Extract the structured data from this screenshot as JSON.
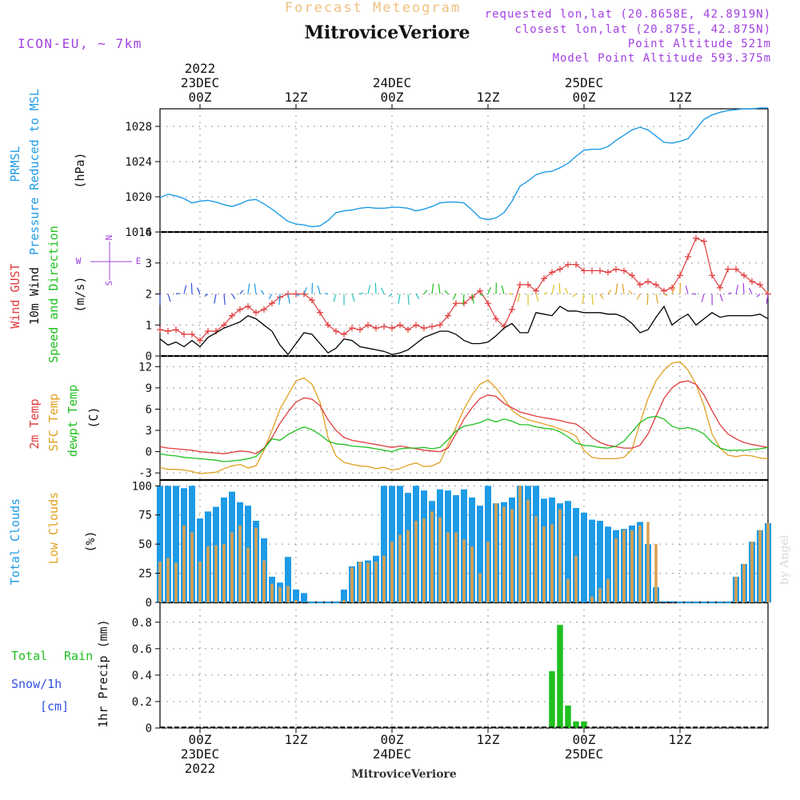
{
  "header": {
    "product": "Forecast Meteogram",
    "location": "MitroviceVeriore",
    "model": "ICON-EU, ~ 7km",
    "requested": "requested lon,lat (20.8658E, 42.8919N)",
    "closest": "closest lon,lat (20.875E, 42.875N)",
    "point_alt": "Point Altitude 521m",
    "model_alt": "Model Point Altitude 593.375m",
    "watermark": "by Angel"
  },
  "time_axis": {
    "top": [
      {
        "h": 0,
        "lines": [
          "2022",
          "23DEC",
          "00Z"
        ]
      },
      {
        "h": 12,
        "lines": [
          "12Z"
        ]
      },
      {
        "h": 24,
        "lines": [
          "24DEC",
          "00Z"
        ]
      },
      {
        "h": 36,
        "lines": [
          "12Z"
        ]
      },
      {
        "h": 48,
        "lines": [
          "25DEC",
          "00Z"
        ]
      },
      {
        "h": 60,
        "lines": [
          "12Z"
        ]
      }
    ],
    "bottom": [
      {
        "h": 0,
        "lines": [
          "00Z",
          "23DEC",
          "2022"
        ]
      },
      {
        "h": 12,
        "lines": [
          "12Z"
        ]
      },
      {
        "h": 24,
        "lines": [
          "00Z",
          "24DEC"
        ]
      },
      {
        "h": 36,
        "lines": [
          "12Z"
        ]
      },
      {
        "h": 48,
        "lines": [
          "00Z",
          "25DEC"
        ]
      },
      {
        "h": 60,
        "lines": [
          "12Z"
        ]
      }
    ],
    "footer": "MitroviceVeriore",
    "range_hours": [
      -5,
      71
    ]
  },
  "compass": {
    "n": "N",
    "s": "S",
    "w": "W",
    "e": "E"
  },
  "labels": {
    "p1": [
      "PRMSL",
      "Pressure Reduced to MSL",
      "(hPa)"
    ],
    "p2_gust": "Wind GUST",
    "p2_wind": "10m Wind",
    "p2_dir": "Speed and Direction",
    "p2_unit": "(m/s)",
    "p3_t2m": "2m Temp",
    "p3_sfc": "SFC Temp",
    "p3_dew": "dewpt Temp",
    "p3_unit": "(C)",
    "p4_total": "Total Clouds",
    "p4_low": "Low Clouds",
    "p4_unit": "(%)",
    "p5_total": "Total",
    "p5_rain": "Rain",
    "p5_snow": "Snow/1h",
    "p5_cm": "[cm]",
    "p5_unit": "1hr Precip (mm)"
  },
  "colors": {
    "pressure": "#1e9be6",
    "gust": "#e03c3c",
    "wind": "#000000",
    "t2m": "#e03c3c",
    "sfc": "#e0a020",
    "dew": "#20c020",
    "total_cloud": "#1e9be6",
    "low_cloud": "#d8a050",
    "rain": "#20c020",
    "snow": "#3050e0",
    "title_header": "#f0c080",
    "info": "#a040e0"
  },
  "chart_data": [
    {
      "type": "line",
      "name": "pressure",
      "ylim": [
        1016,
        1030
      ],
      "yticks": [
        "1016",
        "1020",
        "1024",
        "1028"
      ],
      "x": [
        -5,
        -4,
        -3,
        -2,
        -1,
        0,
        1,
        2,
        3,
        4,
        5,
        6,
        7,
        8,
        9,
        10,
        11,
        12,
        13,
        14,
        15,
        16,
        17,
        18,
        19,
        20,
        21,
        22,
        23,
        24,
        25,
        26,
        27,
        28,
        29,
        30,
        31,
        32,
        33,
        34,
        35,
        36,
        37,
        38,
        39,
        40,
        41,
        42,
        43,
        44,
        45,
        46,
        47,
        48,
        49,
        50,
        51,
        52,
        53,
        54,
        55,
        56,
        57,
        58,
        59,
        60,
        61,
        62,
        63,
        64,
        65,
        66,
        67,
        68,
        69,
        70,
        71
      ],
      "y": [
        1019.9,
        1020.3,
        1020.1,
        1019.8,
        1019.3,
        1019.5,
        1019.6,
        1019.4,
        1019.1,
        1018.9,
        1019.2,
        1019.6,
        1019.7,
        1019.2,
        1018.6,
        1017.9,
        1017.2,
        1016.9,
        1016.8,
        1016.6,
        1016.7,
        1017.3,
        1018.2,
        1018.4,
        1018.5,
        1018.7,
        1018.8,
        1018.7,
        1018.7,
        1018.8,
        1018.8,
        1018.7,
        1018.4,
        1018.6,
        1018.9,
        1019.3,
        1019.4,
        1019.4,
        1019.3,
        1018.5,
        1017.6,
        1017.4,
        1017.6,
        1018.2,
        1019.5,
        1021.2,
        1021.8,
        1022.5,
        1022.8,
        1022.9,
        1023.3,
        1023.8,
        1024.6,
        1025.3,
        1025.4,
        1025.4,
        1025.7,
        1026.4,
        1027.0,
        1027.6,
        1027.9,
        1027.6,
        1026.9,
        1026.2,
        1026.1,
        1026.3,
        1026.6,
        1027.7,
        1028.8,
        1029.3,
        1029.6,
        1029.8,
        1029.9,
        1030.0,
        1030.0,
        1030.1,
        1030.1
      ]
    },
    {
      "type": "line",
      "name": "wind",
      "ylim": [
        0,
        4
      ],
      "yticks": [
        "0",
        "1",
        "2",
        "3",
        "4"
      ],
      "x": [
        -5,
        -4,
        -3,
        -2,
        -1,
        0,
        1,
        2,
        3,
        4,
        5,
        6,
        7,
        8,
        9,
        10,
        11,
        12,
        13,
        14,
        15,
        16,
        17,
        18,
        19,
        20,
        21,
        22,
        23,
        24,
        25,
        26,
        27,
        28,
        29,
        30,
        31,
        32,
        33,
        34,
        35,
        36,
        37,
        38,
        39,
        40,
        41,
        42,
        43,
        44,
        45,
        46,
        47,
        48,
        49,
        50,
        51,
        52,
        53,
        54,
        55,
        56,
        57,
        58,
        59,
        60,
        61,
        62,
        63,
        64,
        65,
        66,
        67,
        68,
        69,
        70,
        71
      ],
      "gust": [
        0.85,
        0.8,
        0.85,
        0.7,
        0.7,
        0.5,
        0.8,
        0.8,
        1.0,
        1.3,
        1.5,
        1.6,
        1.4,
        1.5,
        1.7,
        1.9,
        2.0,
        2.0,
        2.0,
        1.8,
        1.4,
        1.0,
        0.8,
        0.7,
        0.9,
        0.85,
        1.0,
        0.9,
        0.95,
        0.9,
        1.0,
        0.85,
        1.0,
        0.9,
        0.95,
        1.0,
        1.3,
        1.7,
        1.7,
        1.9,
        2.1,
        1.7,
        1.2,
        0.95,
        1.5,
        2.3,
        2.3,
        2.1,
        2.5,
        2.7,
        2.8,
        2.95,
        2.95,
        2.75,
        2.75,
        2.75,
        2.7,
        2.8,
        2.75,
        2.6,
        2.3,
        2.4,
        2.3,
        2.1,
        2.2,
        2.6,
        3.2,
        3.8,
        3.7,
        2.6,
        2.2,
        2.8,
        2.8,
        2.6,
        2.4,
        2.3,
        2.0
      ],
      "speed": [
        0.55,
        0.35,
        0.45,
        0.3,
        0.5,
        0.3,
        0.6,
        0.75,
        0.9,
        1.0,
        1.1,
        1.3,
        1.2,
        1.0,
        0.8,
        0.35,
        0.05,
        0.4,
        0.75,
        0.7,
        0.4,
        0.1,
        0.25,
        0.55,
        0.5,
        0.3,
        0.25,
        0.2,
        0.15,
        0.05,
        0.1,
        0.2,
        0.4,
        0.6,
        0.7,
        0.8,
        0.8,
        0.7,
        0.5,
        0.4,
        0.4,
        0.45,
        0.65,
        0.9,
        1.05,
        0.75,
        0.75,
        1.4,
        1.35,
        1.3,
        1.6,
        1.45,
        1.45,
        1.4,
        1.4,
        1.4,
        1.35,
        1.35,
        1.25,
        1.05,
        0.75,
        0.85,
        1.25,
        1.6,
        1.0,
        1.2,
        1.35,
        1.0,
        1.2,
        1.4,
        1.25,
        1.3,
        1.3,
        1.3,
        1.3,
        1.35,
        1.2
      ]
    },
    {
      "type": "line",
      "name": "temperature",
      "ylim": [
        -4,
        13.5
      ],
      "yticks": [
        "-3",
        "0",
        "3",
        "6",
        "9",
        "12"
      ],
      "x": [
        -5,
        -4,
        -3,
        -2,
        -1,
        0,
        1,
        2,
        3,
        4,
        5,
        6,
        7,
        8,
        9,
        10,
        11,
        12,
        13,
        14,
        15,
        16,
        17,
        18,
        19,
        20,
        21,
        22,
        23,
        24,
        25,
        26,
        27,
        28,
        29,
        30,
        31,
        32,
        33,
        34,
        35,
        36,
        37,
        38,
        39,
        40,
        41,
        42,
        43,
        44,
        45,
        46,
        47,
        48,
        49,
        50,
        51,
        52,
        53,
        54,
        55,
        56,
        57,
        58,
        59,
        60,
        61,
        62,
        63,
        64,
        65,
        66,
        67,
        68,
        69,
        70,
        71
      ],
      "t2m": [
        0.7,
        0.5,
        0.4,
        0.3,
        0.2,
        0.0,
        -0.1,
        -0.2,
        -0.3,
        -0.1,
        0.1,
        0.0,
        -0.3,
        0.5,
        2.0,
        4.0,
        5.6,
        7.0,
        7.6,
        7.4,
        6.5,
        4.5,
        3.0,
        2.0,
        1.6,
        1.4,
        1.2,
        1.0,
        0.8,
        0.6,
        0.8,
        0.6,
        0.4,
        0.2,
        0.1,
        0.0,
        0.5,
        2.5,
        4.6,
        6.2,
        7.5,
        8.0,
        7.8,
        6.8,
        6.2,
        5.6,
        5.3,
        5.0,
        4.8,
        4.6,
        4.4,
        4.1,
        3.9,
        3.1,
        2.0,
        1.3,
        0.9,
        0.7,
        0.5,
        0.5,
        0.9,
        2.5,
        5.0,
        7.5,
        9.0,
        9.8,
        10.0,
        9.5,
        8.0,
        5.8,
        3.8,
        2.5,
        1.8,
        1.3,
        1.0,
        0.8,
        0.6
      ],
      "sfc": [
        -2.2,
        -2.5,
        -2.5,
        -2.6,
        -2.8,
        -3.1,
        -3.0,
        -2.9,
        -2.4,
        -2.0,
        -1.8,
        -2.3,
        -2.0,
        0.2,
        3.0,
        6.0,
        8.0,
        10.0,
        10.4,
        9.5,
        7.0,
        2.0,
        -0.6,
        -1.5,
        -1.8,
        -2.0,
        -2.1,
        -2.4,
        -2.2,
        -2.6,
        -2.4,
        -1.9,
        -1.6,
        -2.1,
        -2.0,
        -1.5,
        1.0,
        3.5,
        6.0,
        8.0,
        9.5,
        10.1,
        9.0,
        7.5,
        5.8,
        5.0,
        4.5,
        4.2,
        3.9,
        3.6,
        3.2,
        2.8,
        2.2,
        0.2,
        -0.8,
        -1.0,
        -1.0,
        -1.0,
        -0.8,
        0.3,
        4.0,
        7.5,
        10.0,
        11.5,
        12.5,
        12.7,
        11.5,
        9.5,
        6.5,
        2.5,
        0.5,
        -0.5,
        -0.7,
        -0.5,
        -0.6,
        -0.9,
        -1.0
      ],
      "dew": [
        -0.3,
        -0.5,
        -0.6,
        -0.8,
        -0.9,
        -1.0,
        -1.1,
        -1.2,
        -1.4,
        -1.3,
        -1.2,
        -1.0,
        -0.7,
        0.4,
        1.8,
        1.6,
        2.4,
        3.0,
        3.5,
        3.1,
        2.4,
        1.5,
        1.1,
        1.0,
        0.8,
        0.7,
        0.6,
        0.4,
        0.2,
        0.0,
        0.4,
        0.5,
        0.5,
        0.6,
        0.4,
        0.6,
        1.7,
        2.9,
        3.6,
        3.8,
        4.1,
        4.6,
        4.2,
        4.6,
        4.3,
        3.8,
        3.8,
        3.5,
        3.3,
        3.2,
        2.8,
        2.1,
        1.2,
        0.9,
        0.8,
        0.6,
        0.5,
        0.8,
        1.5,
        2.8,
        4.1,
        4.8,
        5.0,
        4.6,
        3.6,
        3.2,
        3.4,
        3.1,
        2.5,
        1.3,
        0.5,
        0.2,
        0.2,
        0.2,
        0.3,
        0.4,
        0.6
      ]
    },
    {
      "type": "bar",
      "name": "clouds",
      "ylim": [
        0,
        105
      ],
      "yticks": [
        "0",
        "25",
        "50",
        "75",
        "100"
      ],
      "x": [
        -5,
        -4,
        -3,
        -2,
        -1,
        0,
        1,
        2,
        3,
        4,
        5,
        6,
        7,
        8,
        9,
        10,
        11,
        12,
        13,
        14,
        15,
        16,
        17,
        18,
        19,
        20,
        21,
        22,
        23,
        24,
        25,
        26,
        27,
        28,
        29,
        30,
        31,
        32,
        33,
        34,
        35,
        36,
        37,
        38,
        39,
        40,
        41,
        42,
        43,
        44,
        45,
        46,
        47,
        48,
        49,
        50,
        51,
        52,
        53,
        54,
        55,
        56,
        57,
        58,
        59,
        60,
        61,
        62,
        63,
        64,
        65,
        66,
        67,
        68,
        69,
        70,
        71
      ],
      "total": [
        100,
        100,
        100,
        98,
        100,
        72,
        78,
        82,
        90,
        95,
        86,
        83,
        70,
        55,
        22,
        17,
        39,
        11,
        8,
        0,
        0,
        0,
        0,
        11,
        31,
        35,
        36,
        40,
        100,
        100,
        100,
        94,
        100,
        96,
        87,
        97,
        96,
        92,
        97,
        90,
        83,
        100,
        85,
        86,
        90,
        100,
        100,
        100,
        89,
        90,
        85,
        87,
        81,
        77,
        71,
        70,
        65,
        62,
        63,
        66,
        69,
        50,
        13,
        1,
        1,
        0,
        0,
        0,
        0,
        0,
        0,
        0,
        22,
        33,
        52,
        62,
        68
      ],
      "low": [
        35,
        38,
        34,
        66,
        60,
        35,
        48,
        49,
        50,
        60,
        66,
        47,
        64,
        36,
        16,
        13,
        14,
        2,
        0,
        0,
        0,
        0,
        0,
        2,
        30,
        35,
        34,
        35,
        40,
        52,
        58,
        62,
        70,
        72,
        78,
        73,
        60,
        60,
        54,
        48,
        25,
        52,
        85,
        82,
        80,
        100,
        88,
        74,
        65,
        67,
        80,
        20,
        40,
        0,
        5,
        12,
        20,
        55,
        62,
        62,
        66,
        69,
        50,
        0,
        0,
        0,
        0,
        0,
        0,
        0,
        0,
        0,
        22,
        33,
        52,
        62,
        68
      ]
    },
    {
      "type": "bar",
      "name": "precip",
      "ylim": [
        0,
        0.95
      ],
      "yticks": [
        "0",
        "0.2",
        "0.4",
        "0.6",
        "0.8"
      ],
      "x": [
        44,
        45,
        46,
        47,
        48
      ],
      "rain": [
        0.43,
        0.78,
        0.17,
        0.05,
        0.05
      ]
    }
  ]
}
